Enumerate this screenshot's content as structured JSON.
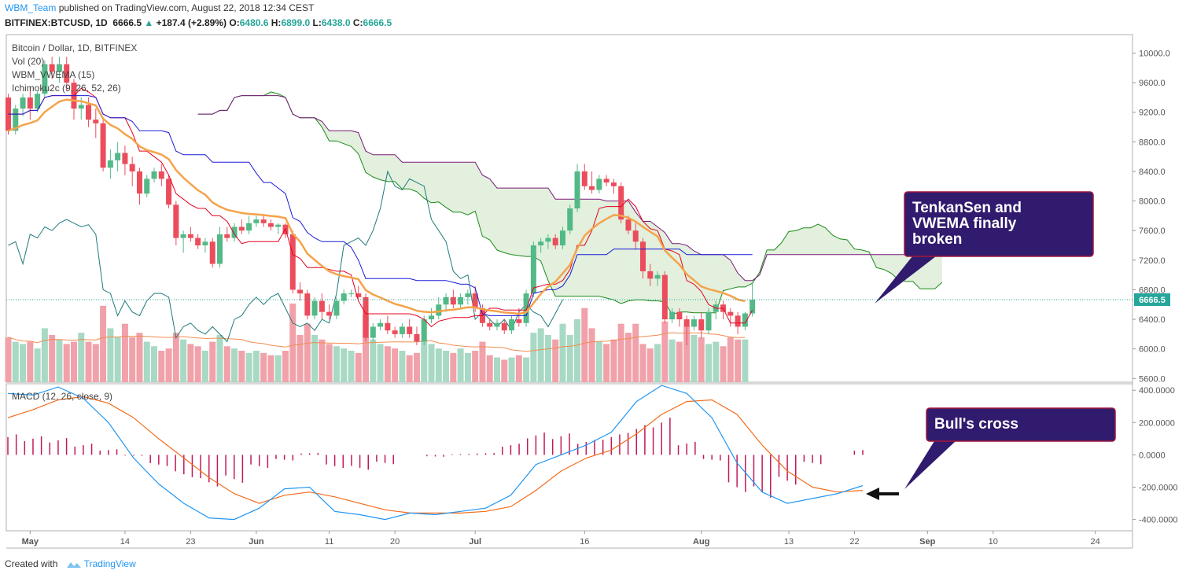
{
  "header": {
    "user": "WBM_Team",
    "published": "published on TradingView.com, August 22, 2018 12:34 CEST",
    "symbol": "BITFINEX:BTCUSD, 1D",
    "last": "6666.5",
    "change": "+187.4 (+2.89%)",
    "o_label": "O:",
    "o": "6480.6",
    "h_label": "H:",
    "h": "6899.0",
    "l_label": "L:",
    "l": "6438.0",
    "c_label": "C:",
    "c": "6666.5"
  },
  "legend": {
    "title": "Bitcoin / Dollar, 1D, BITFINEX",
    "vol": "Vol (20)",
    "vwema": "WBM_VWEMA (15)",
    "ichimoku": "Ichimoku2c (9, 26, 52, 26)",
    "macd": "MACD (12, 26, close, 9)"
  },
  "footer": {
    "created": "Created with",
    "brand": "TradingView"
  },
  "colors": {
    "up": "#26a69a",
    "down": "#ef5350",
    "candle_up": "#53b987",
    "candle_down": "#eb4d5c",
    "vol_up": "#a8d9c4",
    "vol_down": "#f1a1a9",
    "tenkan": "#e4001f",
    "kijun": "#1a1ad8",
    "chikou": "#1f7a7a",
    "span_a": "#1a8a1a",
    "span_b": "#7a1a7a",
    "cloud": "#e2f0dd",
    "vwema": "#f5a34a",
    "vol_ma": "#f08c50",
    "macd": "#2196f3",
    "signal": "#f36c1c",
    "hist": "#c2185b",
    "callout": "#311b6e",
    "callout_border": "#a0183c"
  },
  "chart_data": [
    {
      "type": "candlestick",
      "title": "Bitcoin / Dollar, 1D, BITFINEX",
      "x_start": "2018-04-28",
      "x_ticks": [
        "May",
        "14",
        "23",
        "Jun",
        "11",
        "20",
        "Jul",
        "16",
        "Aug",
        "13",
        "22",
        "Sep",
        "10",
        "24"
      ],
      "y_ticks": [
        "10000.0",
        "9600.0",
        "9200.0",
        "8800.0",
        "8400.0",
        "8000.0",
        "7600.0",
        "7200.0",
        "6800.0",
        "6400.0",
        "6000.0",
        "5600.0"
      ],
      "ylim": [
        5550,
        10250
      ],
      "last_price_label": "6666.5",
      "ohlc": [
        [
          9400,
          9450,
          8900,
          8950
        ],
        [
          8950,
          9300,
          8900,
          9250
        ],
        [
          9250,
          9450,
          9150,
          9400
        ],
        [
          9400,
          9550,
          9100,
          9250
        ],
        [
          9250,
          9480,
          9200,
          9450
        ],
        [
          9450,
          9900,
          9400,
          9850
        ],
        [
          9850,
          9950,
          9650,
          9750
        ],
        [
          9750,
          9950,
          9600,
          9850
        ],
        [
          9850,
          9950,
          9500,
          9600
        ],
        [
          9600,
          9650,
          9100,
          9250
        ],
        [
          9250,
          9400,
          9100,
          9300
        ],
        [
          9300,
          9400,
          9000,
          9100
        ],
        [
          9100,
          9250,
          8850,
          9050
        ],
        [
          9050,
          9100,
          8400,
          8450
        ],
        [
          8450,
          8700,
          8300,
          8550
        ],
        [
          8550,
          8800,
          8400,
          8650
        ],
        [
          8650,
          8750,
          8350,
          8500
        ],
        [
          8500,
          8600,
          8200,
          8400
        ],
        [
          8400,
          8450,
          7950,
          8100
        ],
        [
          8100,
          8350,
          8050,
          8300
        ],
        [
          8300,
          8450,
          8250,
          8400
        ],
        [
          8400,
          8500,
          8200,
          8300
        ],
        [
          8300,
          8350,
          7900,
          7950
        ],
        [
          7950,
          8000,
          7400,
          7500
        ],
        [
          7500,
          7600,
          7300,
          7550
        ],
        [
          7550,
          7650,
          7450,
          7500
        ],
        [
          7500,
          7550,
          7350,
          7400
        ],
        [
          7400,
          7500,
          7300,
          7450
        ],
        [
          7450,
          7500,
          7100,
          7150
        ],
        [
          7150,
          7650,
          7100,
          7550
        ],
        [
          7550,
          7650,
          7450,
          7500
        ],
        [
          7500,
          7700,
          7450,
          7650
        ],
        [
          7650,
          7750,
          7550,
          7600
        ],
        [
          7600,
          7800,
          7550,
          7700
        ],
        [
          7700,
          7800,
          7650,
          7750
        ],
        [
          7750,
          7800,
          7650,
          7700
        ],
        [
          7700,
          7750,
          7600,
          7650
        ],
        [
          7650,
          7700,
          7550,
          7680
        ],
        [
          7680,
          7700,
          7500,
          7550
        ],
        [
          7550,
          7600,
          6750,
          6800
        ],
        [
          6800,
          6900,
          6650,
          6750
        ],
        [
          6750,
          6800,
          6400,
          6450
        ],
        [
          6450,
          6700,
          6400,
          6650
        ],
        [
          6650,
          6750,
          6400,
          6500
        ],
        [
          6500,
          6600,
          6400,
          6450
        ],
        [
          6450,
          6700,
          6400,
          6650
        ],
        [
          6650,
          6800,
          6600,
          6750
        ],
        [
          6750,
          6800,
          6700,
          6750
        ],
        [
          6750,
          6850,
          6650,
          6700
        ],
        [
          6700,
          6750,
          6100,
          6150
        ],
        [
          6150,
          6350,
          6100,
          6300
        ],
        [
          6300,
          6400,
          6250,
          6350
        ],
        [
          6350,
          6450,
          6200,
          6250
        ],
        [
          6250,
          6300,
          6150,
          6200
        ],
        [
          6200,
          6350,
          6150,
          6300
        ],
        [
          6300,
          6400,
          6150,
          6200
        ],
        [
          6200,
          6300,
          6050,
          6100
        ],
        [
          6100,
          6450,
          6050,
          6400
        ],
        [
          6400,
          6550,
          6350,
          6450
        ],
        [
          6450,
          6700,
          6400,
          6600
        ],
        [
          6600,
          6750,
          6500,
          6700
        ],
        [
          6700,
          6800,
          6550,
          6600
        ],
        [
          6600,
          6750,
          6550,
          6700
        ],
        [
          6700,
          6800,
          6600,
          6750
        ],
        [
          6750,
          6850,
          6500,
          6550
        ],
        [
          6550,
          6600,
          6300,
          6350
        ],
        [
          6350,
          6400,
          6250,
          6300
        ],
        [
          6300,
          6400,
          6250,
          6350
        ],
        [
          6350,
          6400,
          6200,
          6250
        ],
        [
          6250,
          6450,
          6200,
          6400
        ],
        [
          6400,
          6550,
          6300,
          6350
        ],
        [
          6350,
          6800,
          6300,
          6750
        ],
        [
          6750,
          7450,
          6700,
          7400
        ],
        [
          7400,
          7500,
          7300,
          7450
        ],
        [
          7450,
          7550,
          7350,
          7500
        ],
        [
          7500,
          7550,
          7350,
          7400
        ],
        [
          7400,
          7650,
          7350,
          7600
        ],
        [
          7600,
          7950,
          7550,
          7900
        ],
        [
          7900,
          8500,
          7850,
          8400
        ],
        [
          8400,
          8500,
          8150,
          8200
        ],
        [
          8200,
          8400,
          8100,
          8150
        ],
        [
          8150,
          8350,
          8100,
          8300
        ],
        [
          8300,
          8350,
          8200,
          8250
        ],
        [
          8250,
          8300,
          8100,
          8200
        ],
        [
          8200,
          8250,
          7700,
          7750
        ],
        [
          7750,
          7800,
          7550,
          7600
        ],
        [
          7600,
          7700,
          7350,
          7450
        ],
        [
          7450,
          7500,
          6950,
          7050
        ],
        [
          7050,
          7150,
          6850,
          6950
        ],
        [
          6950,
          7050,
          6850,
          7000
        ],
        [
          7000,
          7050,
          6350,
          6400
        ],
        [
          6400,
          6550,
          6350,
          6500
        ],
        [
          6500,
          6550,
          6300,
          6400
        ],
        [
          6400,
          6450,
          6050,
          6300
        ],
        [
          6300,
          6450,
          6250,
          6400
        ],
        [
          6400,
          6500,
          6150,
          6250
        ],
        [
          6250,
          6550,
          6200,
          6500
        ],
        [
          6500,
          6650,
          6400,
          6600
        ],
        [
          6600,
          6650,
          6400,
          6500
        ],
        [
          6500,
          6550,
          6300,
          6450
        ],
        [
          6450,
          6500,
          6200,
          6300
        ],
        [
          6300,
          6500,
          6250,
          6480
        ],
        [
          6480,
          6899,
          6438,
          6666.5
        ]
      ],
      "volume": [
        1.0,
        0.9,
        0.85,
        0.9,
        0.75,
        1.2,
        1.05,
        0.95,
        0.85,
        0.9,
        1.1,
        0.9,
        0.85,
        1.7,
        1.2,
        1.0,
        1.3,
        1.0,
        1.1,
        0.9,
        0.8,
        0.7,
        0.75,
        1.1,
        0.95,
        0.85,
        0.8,
        0.7,
        0.9,
        1.05,
        0.8,
        0.75,
        0.7,
        0.65,
        0.7,
        0.65,
        0.6,
        0.6,
        0.7,
        1.75,
        1.05,
        1.3,
        1.05,
        0.95,
        0.85,
        0.8,
        0.75,
        0.7,
        0.65,
        1.5,
        0.95,
        0.85,
        0.8,
        0.75,
        0.7,
        0.6,
        0.65,
        0.95,
        0.85,
        0.75,
        0.7,
        0.65,
        0.75,
        0.65,
        0.7,
        0.9,
        0.6,
        0.55,
        0.5,
        0.55,
        0.6,
        0.55,
        1.1,
        1.2,
        1.05,
        0.95,
        1.3,
        1.05,
        1.4,
        1.65,
        1.2,
        0.9,
        0.85,
        0.95,
        1.3,
        1.1,
        1.3,
        0.85,
        0.75,
        0.85,
        1.35,
        0.95,
        0.9,
        1.25,
        1.05,
        1.0,
        0.85,
        0.9,
        0.8,
        1.0,
        0.95,
        0.95
      ],
      "annotations": [
        "TenkanSen and VWEMA finally broken"
      ]
    },
    {
      "type": "line",
      "title": "MACD (12, 26, close, 9)",
      "y_ticks": [
        "400.0000",
        "200.0000",
        "0.0000",
        "-200.0000",
        "-400.0000"
      ],
      "ylim": [
        -470,
        440
      ],
      "series": [
        {
          "name": "MACD",
          "values": [
            380,
            370,
            420,
            350,
            200,
            -20,
            -180,
            -300,
            -390,
            -400,
            -330,
            -210,
            -200,
            -350,
            -370,
            -400,
            -360,
            -370,
            -350,
            -330,
            -250,
            -60,
            0,
            60,
            140,
            330,
            430,
            380,
            230,
            -50,
            -230,
            -300,
            -270,
            -240,
            -190
          ]
        },
        {
          "name": "Signal",
          "values": [
            230,
            280,
            340,
            360,
            320,
            230,
            100,
            -20,
            -140,
            -240,
            -300,
            -250,
            -230,
            -260,
            -300,
            -340,
            -360,
            -360,
            -360,
            -350,
            -320,
            -220,
            -100,
            -20,
            30,
            130,
            250,
            330,
            340,
            250,
            60,
            -100,
            -200,
            -230,
            -220
          ]
        }
      ],
      "histogram": [
        110,
        100,
        90,
        60,
        30,
        -5,
        -60,
        -120,
        -170,
        -150,
        -70,
        -30,
        10,
        -70,
        -80,
        -50,
        0,
        -10,
        5,
        10,
        60,
        120,
        115,
        80,
        110,
        160,
        200,
        70,
        -30,
        -200,
        -230,
        -160,
        -50,
        0,
        30
      ],
      "annotations": [
        "Bull's cross"
      ]
    }
  ]
}
